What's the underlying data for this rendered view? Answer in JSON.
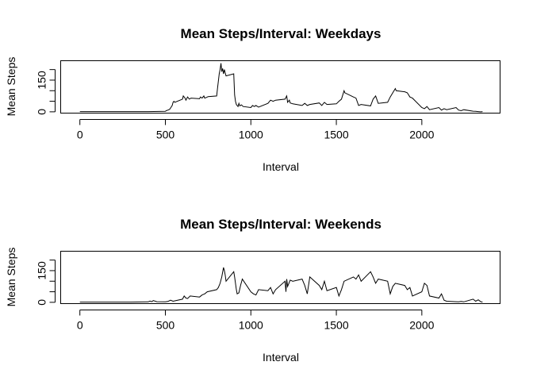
{
  "chart_data": [
    {
      "type": "line",
      "title": "Mean Steps/Interval: Weekdays",
      "xlabel": "Interval",
      "ylabel": "Mean Steps",
      "xlim": [
        -110,
        2460
      ],
      "ylim": [
        -8,
        240
      ],
      "xticks": [
        0,
        500,
        1000,
        1500,
        2000
      ],
      "xtick_labels": [
        "0",
        "500",
        "1000",
        "1500",
        "2000"
      ],
      "yticks": [
        0,
        50,
        100,
        150,
        200
      ],
      "ytick_labels": [
        "0",
        "",
        "",
        "150",
        ""
      ],
      "grid": false,
      "legend": "none",
      "series": [
        {
          "color": "#000000",
          "x": [
            0,
            100,
            200,
            300,
            400,
            500,
            505,
            515,
            525,
            530,
            540,
            545,
            550,
            555,
            600,
            605,
            615,
            620,
            630,
            640,
            650,
            700,
            705,
            715,
            725,
            730,
            740,
            750,
            800,
            805,
            815,
            820,
            825,
            830,
            835,
            840,
            845,
            850,
            855,
            900,
            905,
            910,
            915,
            920,
            925,
            930,
            935,
            945,
            955,
            1000,
            1010,
            1020,
            1030,
            1045,
            1100,
            1115,
            1130,
            1145,
            1200,
            1210,
            1215,
            1225,
            1230,
            1245,
            1300,
            1315,
            1330,
            1345,
            1400,
            1415,
            1430,
            1445,
            1500,
            1515,
            1530,
            1545,
            1550,
            1600,
            1615,
            1630,
            1645,
            1700,
            1715,
            1730,
            1745,
            1800,
            1815,
            1830,
            1845,
            1850,
            1900,
            1915,
            1930,
            1945,
            2000,
            2015,
            2030,
            2045,
            2100,
            2115,
            2130,
            2145,
            2200,
            2215,
            2230,
            2245,
            2300,
            2315,
            2330,
            2345,
            2355
          ],
          "y": [
            1,
            1,
            1,
            1,
            1,
            2,
            5,
            8,
            12,
            18,
            30,
            45,
            50,
            45,
            60,
            75,
            65,
            55,
            70,
            60,
            65,
            62,
            70,
            65,
            75,
            65,
            68,
            72,
            75,
            110,
            180,
            200,
            230,
            190,
            205,
            180,
            200,
            185,
            170,
            180,
            80,
            50,
            35,
            30,
            25,
            40,
            28,
            33,
            25,
            20,
            30,
            25,
            30,
            22,
            40,
            55,
            50,
            55,
            60,
            75,
            45,
            55,
            42,
            38,
            30,
            40,
            30,
            35,
            42,
            30,
            45,
            35,
            38,
            50,
            60,
            100,
            90,
            70,
            65,
            30,
            35,
            28,
            60,
            75,
            40,
            45,
            70,
            90,
            110,
            100,
            95,
            90,
            70,
            65,
            20,
            15,
            25,
            10,
            20,
            8,
            15,
            10,
            20,
            8,
            5,
            10,
            3,
            2,
            1,
            0,
            1
          ]
        }
      ]
    },
    {
      "type": "line",
      "title": "Mean Steps/Interval: Weekends",
      "xlabel": "Interval",
      "ylabel": "Mean Steps",
      "xlim": [
        -110,
        2460
      ],
      "ylim": [
        -8,
        240
      ],
      "xticks": [
        0,
        500,
        1000,
        1500,
        2000
      ],
      "xtick_labels": [
        "0",
        "500",
        "1000",
        "1500",
        "2000"
      ],
      "yticks": [
        0,
        50,
        100,
        150,
        200
      ],
      "ytick_labels": [
        "0",
        "",
        "",
        "150",
        ""
      ],
      "grid": false,
      "legend": "none",
      "series": [
        {
          "color": "#000000",
          "x": [
            0,
            100,
            200,
            300,
            400,
            410,
            420,
            430,
            450,
            500,
            515,
            530,
            545,
            600,
            610,
            620,
            630,
            645,
            700,
            715,
            730,
            745,
            800,
            810,
            820,
            830,
            840,
            845,
            850,
            855,
            900,
            905,
            910,
            915,
            920,
            930,
            940,
            950,
            1000,
            1015,
            1030,
            1045,
            1100,
            1115,
            1130,
            1145,
            1200,
            1205,
            1210,
            1215,
            1230,
            1245,
            1300,
            1315,
            1330,
            1345,
            1400,
            1415,
            1430,
            1445,
            1500,
            1515,
            1530,
            1545,
            1600,
            1615,
            1630,
            1645,
            1700,
            1715,
            1730,
            1745,
            1800,
            1815,
            1830,
            1845,
            1900,
            1915,
            1930,
            1945,
            2000,
            2015,
            2030,
            2045,
            2100,
            2115,
            2130,
            2145,
            2200,
            2215,
            2230,
            2245,
            2300,
            2315,
            2330,
            2345,
            2355
          ],
          "y": [
            1,
            1,
            1,
            1,
            2,
            6,
            3,
            8,
            3,
            2,
            4,
            10,
            5,
            15,
            30,
            20,
            18,
            30,
            25,
            35,
            40,
            50,
            60,
            70,
            90,
            120,
            165,
            150,
            130,
            100,
            145,
            120,
            90,
            60,
            40,
            45,
            80,
            110,
            50,
            40,
            35,
            60,
            55,
            70,
            40,
            60,
            100,
            50,
            110,
            75,
            105,
            100,
            110,
            80,
            40,
            120,
            80,
            60,
            100,
            55,
            70,
            30,
            60,
            100,
            120,
            110,
            130,
            100,
            145,
            120,
            90,
            110,
            100,
            40,
            75,
            90,
            80,
            60,
            70,
            30,
            50,
            90,
            80,
            30,
            20,
            40,
            10,
            5,
            3,
            2,
            4,
            2,
            15,
            5,
            12,
            3,
            1
          ]
        }
      ]
    }
  ]
}
